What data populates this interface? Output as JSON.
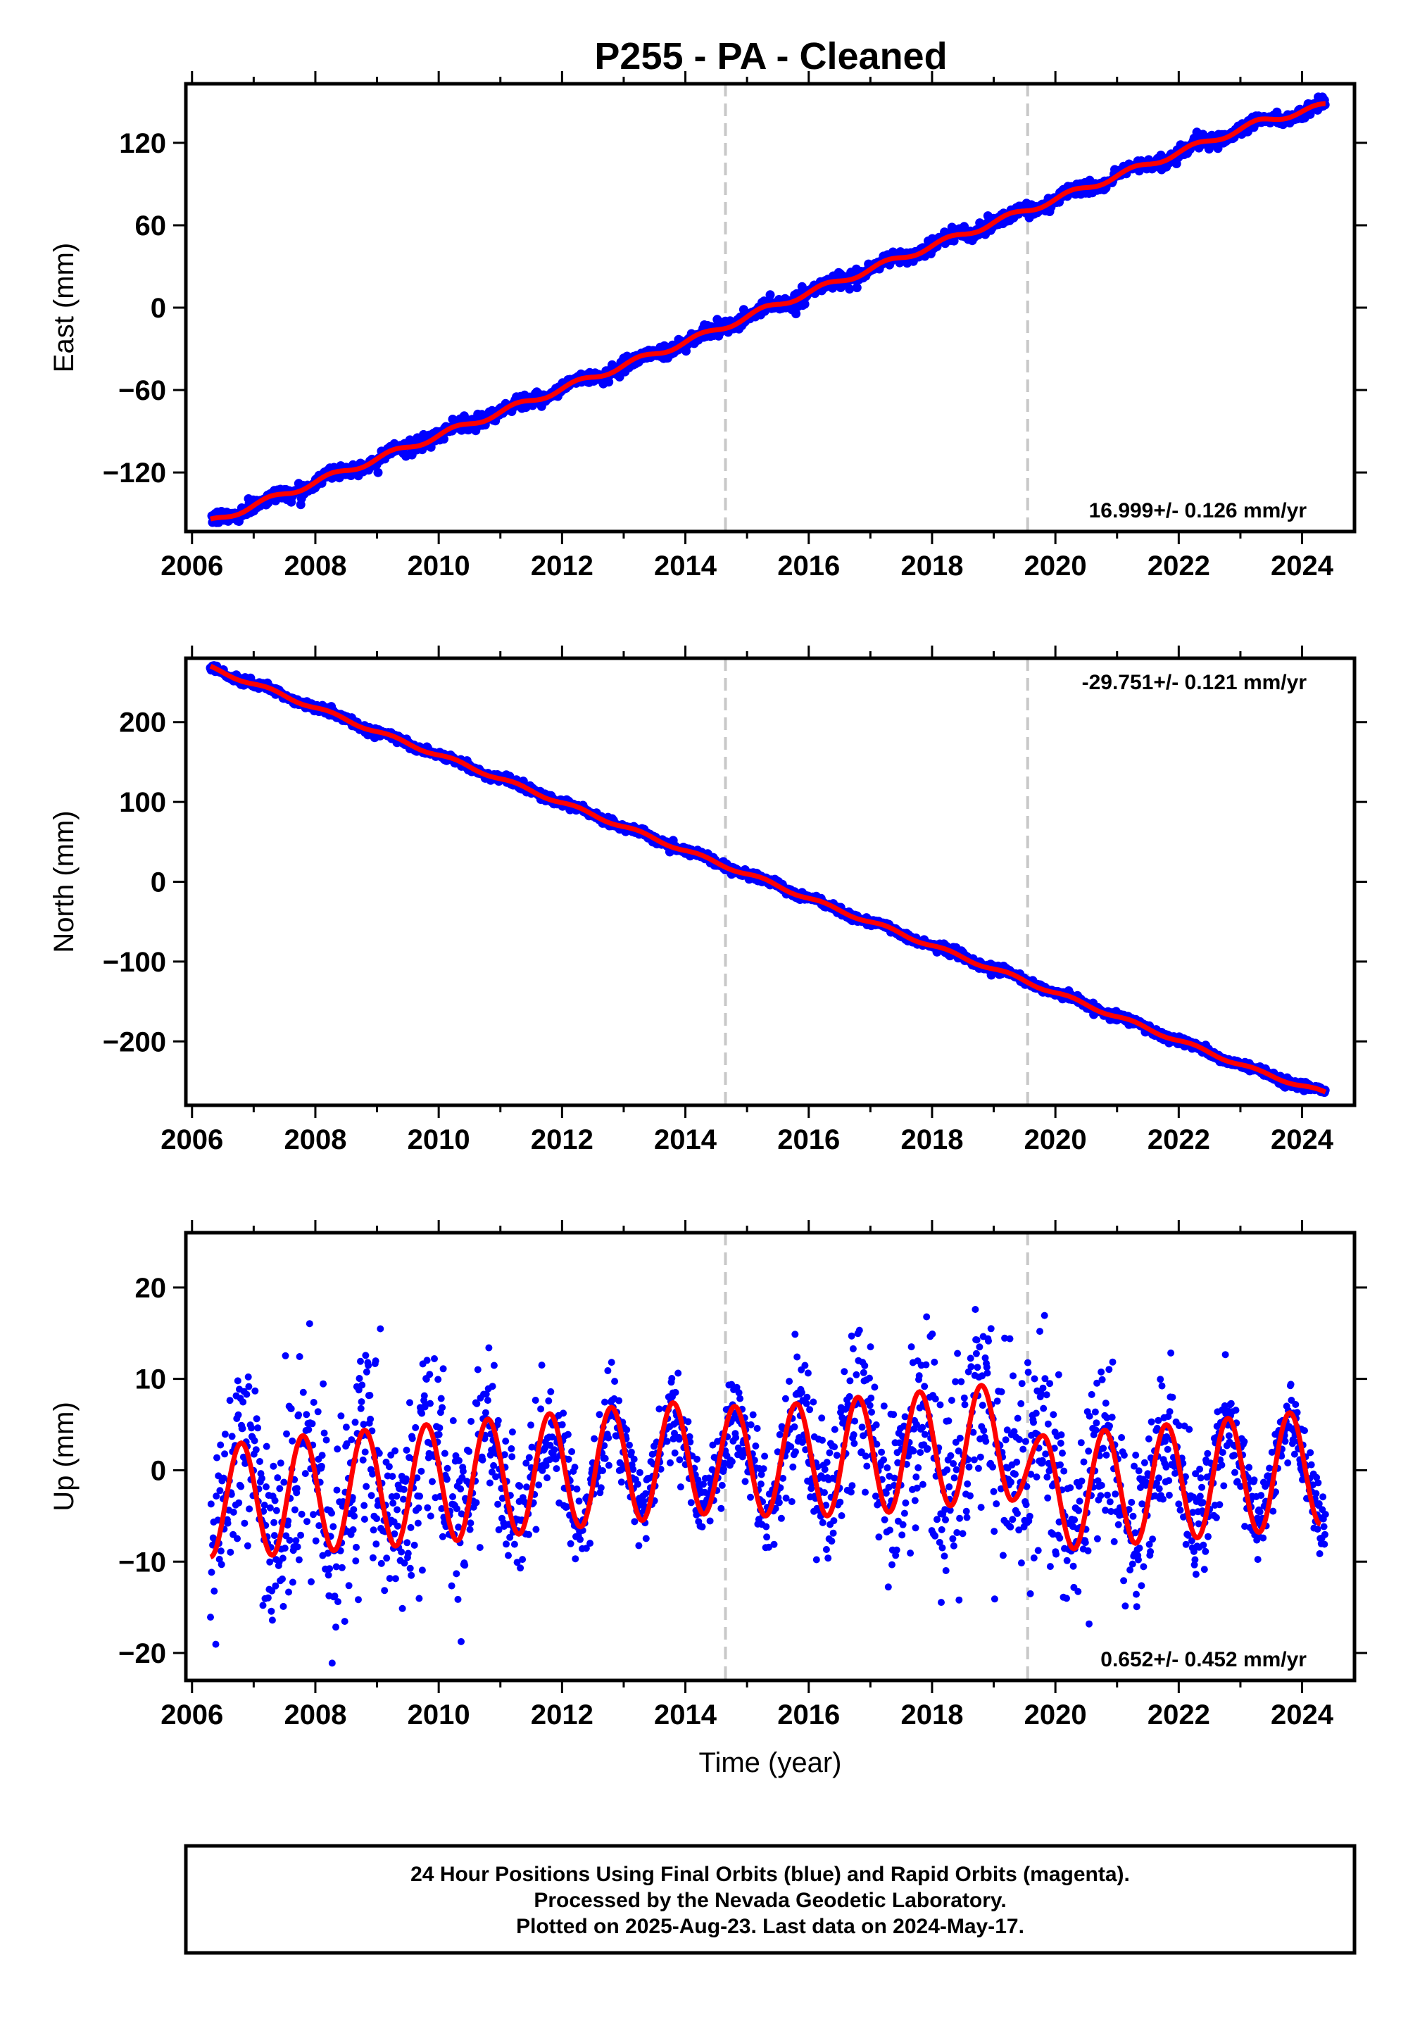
{
  "title": "P255  - PA - Cleaned",
  "colors": {
    "final_orbits": "#0000ff",
    "model_fit": "#ff0000",
    "event_line": "#c8c8c8",
    "frame": "#000000"
  },
  "footer": {
    "line1": "24 Hour Positions Using Final Orbits (blue) and Rapid Orbits (magenta).",
    "line2": "Processed by the Nevada Geodetic Laboratory.",
    "line3": "Plotted on 2025-Aug-23. Last data on 2024-May-17."
  },
  "chart_data": [
    {
      "type": "scatter",
      "ylabel": "East (mm)",
      "xlabel": "",
      "xlim": [
        2005.9,
        2024.85
      ],
      "ylim": [
        -163,
        163
      ],
      "x_ticks": [
        2006,
        2008,
        2010,
        2012,
        2014,
        2016,
        2018,
        2020,
        2022,
        2024
      ],
      "y_ticks": [
        -120,
        -60,
        0,
        60,
        120
      ],
      "y_tick_labels": [
        "−120",
        "−60",
        "0",
        "60",
        "120"
      ],
      "event_lines": [
        2014.65,
        2019.55
      ],
      "rate_label": "16.999+/- 0.126 mm/yr",
      "rate_label_position": "bottom-right",
      "fit": {
        "x": [
          2006.3,
          2007.3,
          2008.3,
          2009.3,
          2010.3,
          2011.3,
          2012.3,
          2013.3,
          2014.3,
          2015.3,
          2016.3,
          2017.3,
          2018.3,
          2019.3,
          2020.3,
          2021.3,
          2022.3,
          2023.3,
          2024.38
        ],
        "y": [
          -156,
          -139,
          -122,
          -105,
          -88,
          -71,
          -54,
          -37,
          -20,
          -1,
          16,
          33,
          50,
          67,
          84,
          101,
          118,
          135,
          147
        ]
      },
      "points": {
        "x_start": 2006.3,
        "x_end": 2024.38,
        "trend_mm_per_yr": 16.999,
        "scatter_mm": 2.5
      }
    },
    {
      "type": "scatter",
      "ylabel": "North (mm)",
      "xlabel": "",
      "xlim": [
        2005.9,
        2024.85
      ],
      "ylim": [
        -280,
        280
      ],
      "x_ticks": [
        2006,
        2008,
        2010,
        2012,
        2014,
        2016,
        2018,
        2020,
        2022,
        2024
      ],
      "y_ticks": [
        -200,
        -100,
        0,
        100,
        200
      ],
      "y_tick_labels": [
        "−200",
        "−100",
        "0",
        "100",
        "200"
      ],
      "event_lines": [
        2014.65,
        2019.55
      ],
      "rate_label": "-29.751+/- 0.121 mm/yr",
      "rate_label_position": "top-right",
      "fit": {
        "x": [
          2006.3,
          2007.3,
          2008.3,
          2009.3,
          2010.3,
          2011.3,
          2012.3,
          2013.3,
          2014.3,
          2015.3,
          2016.3,
          2017.3,
          2018.3,
          2019.3,
          2020.3,
          2021.3,
          2022.3,
          2023.3,
          2024.38
        ],
        "y": [
          268,
          239,
          209,
          179,
          150,
          120,
          90,
          60,
          30,
          1,
          -30,
          -59,
          -89,
          -118,
          -148,
          -178,
          -208,
          -238,
          -265
        ]
      },
      "points": {
        "x_start": 2006.3,
        "x_end": 2024.38,
        "trend_mm_per_yr": -29.751,
        "scatter_mm": 2.5
      }
    },
    {
      "type": "scatter",
      "ylabel": "Up (mm)",
      "xlabel": "Time (year)",
      "xlim": [
        2005.9,
        2024.85
      ],
      "ylim": [
        -23,
        26
      ],
      "x_ticks": [
        2006,
        2008,
        2010,
        2012,
        2014,
        2016,
        2018,
        2020,
        2022,
        2024
      ],
      "y_ticks": [
        -20,
        -10,
        0,
        10,
        20
      ],
      "y_tick_labels": [
        "−20",
        "−10",
        "0",
        "10",
        "20"
      ],
      "event_lines": [
        2014.65,
        2019.55
      ],
      "rate_label": "0.652+/- 0.452 mm/yr",
      "rate_label_position": "bottom-right",
      "fit": {
        "x": [
          2006.3,
          2006.8,
          2007.3,
          2007.8,
          2008.3,
          2008.8,
          2009.3,
          2009.8,
          2010.3,
          2010.8,
          2011.3,
          2011.8,
          2012.3,
          2012.8,
          2013.3,
          2013.8,
          2014.3,
          2014.8,
          2015.3,
          2015.8,
          2016.3,
          2016.8,
          2017.3,
          2017.8,
          2018.3,
          2018.8,
          2019.3,
          2019.8,
          2020.3,
          2020.8,
          2021.3,
          2021.8,
          2022.3,
          2022.8,
          2023.3,
          2023.8,
          2024.3
        ],
        "y": [
          -9.5,
          3,
          -9.3,
          3.8,
          -8.8,
          4.4,
          -8.3,
          5,
          -7.7,
          5.6,
          -7,
          6.2,
          -6.2,
          6.9,
          -5.5,
          7.4,
          -4.8,
          7,
          -5,
          7.3,
          -5,
          8,
          -4.6,
          8.6,
          -3.9,
          9.3,
          -3.3,
          3.8,
          -8.6,
          4.4,
          -8,
          5,
          -7.4,
          5.7,
          -6.8,
          6.3,
          -5.9
        ]
      },
      "points": {
        "x_start": 2006.3,
        "x_end": 2024.38,
        "seasonal_amplitude_mm": 6,
        "scatter_mm": 4
      }
    }
  ]
}
